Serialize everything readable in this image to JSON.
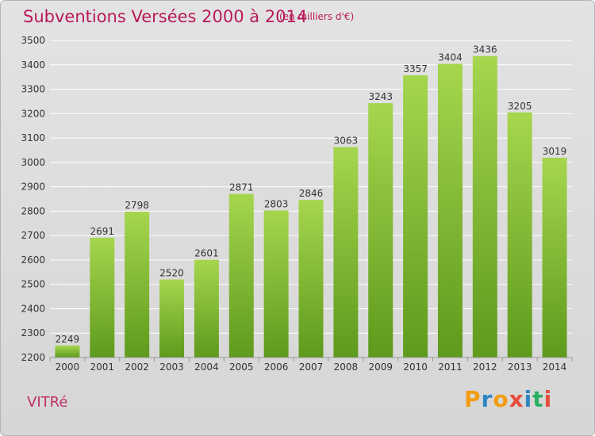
{
  "header": {
    "title": "Subventions Versées 2000 à 2014",
    "subtitle": "(en milliers d'€)"
  },
  "footer": {
    "commune": "VITRé",
    "logo_letters": [
      "P",
      "r",
      "o",
      "x",
      "i",
      "t",
      "i"
    ],
    "logo_colors": [
      "#f39c12",
      "#2e86c1",
      "#f39c12",
      "#e74c3c",
      "#2e86c1",
      "#27ae60",
      "#e74c3c"
    ]
  },
  "chart_data": {
    "type": "bar",
    "title": "Subventions Versées 2000 à 2014",
    "subtitle": "(en milliers d'€)",
    "categories": [
      "2000",
      "2001",
      "2002",
      "2003",
      "2004",
      "2005",
      "2006",
      "2007",
      "2008",
      "2009",
      "2010",
      "2011",
      "2012",
      "2013",
      "2014"
    ],
    "values": [
      2249,
      2691,
      2798,
      2520,
      2601,
      2871,
      2803,
      2846,
      3063,
      3243,
      3357,
      3404,
      3436,
      3205,
      3019
    ],
    "ylim": [
      2200,
      3500
    ],
    "yticks": [
      2200,
      2300,
      2400,
      2500,
      2600,
      2700,
      2800,
      2900,
      3000,
      3100,
      3200,
      3300,
      3400,
      3500
    ],
    "grid": true,
    "colors": {
      "bar_top": "#a6d64e",
      "bar_bottom": "#5e9a1c",
      "grid": "#ffffff",
      "axis_text": "#333333"
    }
  }
}
